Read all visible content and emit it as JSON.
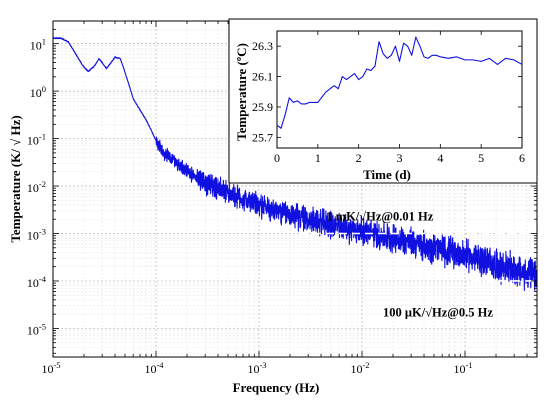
{
  "chart_data": [
    {
      "type": "line",
      "xlabel": "Frequency (Hz)",
      "ylabel": "Temperature (K/ √ Hz)",
      "xscale": "log",
      "yscale": "log",
      "xlim": [
        1e-05,
        0.5
      ],
      "ylim": [
        2.5e-06,
        30
      ],
      "x_ticks": [
        {
          "value": 1e-05,
          "base": "10",
          "exp": "-5"
        },
        {
          "value": 0.0001,
          "base": "10",
          "exp": "-4"
        },
        {
          "value": 0.001,
          "base": "10",
          "exp": "-3"
        },
        {
          "value": 0.01,
          "base": "10",
          "exp": "-2"
        },
        {
          "value": 0.1,
          "base": "10",
          "exp": "-1"
        }
      ],
      "y_ticks": [
        {
          "value": 10,
          "base": "10",
          "exp": "1"
        },
        {
          "value": 1,
          "base": "10",
          "exp": "0"
        },
        {
          "value": 0.1,
          "base": "10",
          "exp": "-1"
        },
        {
          "value": 0.01,
          "base": "10",
          "exp": "-2"
        },
        {
          "value": 0.001,
          "base": "10",
          "exp": "-3"
        },
        {
          "value": 0.0001,
          "base": "10",
          "exp": "-4"
        },
        {
          "value": 1e-05,
          "base": "10",
          "exp": "-5"
        }
      ],
      "grid": true,
      "color": "#1010e0",
      "series": [
        {
          "x": [
            1e-05,
            1.2e-05,
            1.4e-05,
            1.6e-05,
            1.8e-05,
            2e-05,
            2.2e-05,
            2.5e-05,
            2.8e-05,
            3e-05,
            3.3e-05,
            3.6e-05,
            4e-05,
            4.5e-05,
            5e-05,
            5.5e-05,
            6e-05,
            7e-05,
            8e-05,
            9e-05,
            0.0001,
            0.00012,
            0.00015,
            0.0002,
            0.0003,
            0.0005,
            0.001,
            0.002,
            0.005,
            0.01,
            0.02,
            0.05,
            0.1,
            0.2,
            0.5
          ],
          "y": [
            13,
            13,
            11,
            7,
            4.5,
            3.2,
            2.6,
            3.3,
            4.8,
            4,
            3,
            3.8,
            5.2,
            4.8,
            2.5,
            1.3,
            0.7,
            0.4,
            0.25,
            0.15,
            0.09,
            0.05,
            0.035,
            0.02,
            0.012,
            0.007,
            0.004,
            0.0025,
            0.0015,
            0.0011,
            0.0008,
            0.0005,
            0.00035,
            0.00022,
            0.00012
          ]
        }
      ],
      "reference_lines": [
        {
          "y": 0.001,
          "x_from": 0.0025,
          "x_to": 0.5,
          "style": "dashed",
          "color": "#ffffff"
        },
        {
          "y": 0.0001,
          "x_from": 0.12,
          "x_to": 0.5,
          "style": "dashed",
          "color": "#ffffff"
        }
      ],
      "annotations": [
        {
          "text": "1 mK/√Hz@0.01 Hz",
          "x": 0.0045,
          "y": 0.0019
        },
        {
          "text": "100 μK/√Hz@0.5 Hz",
          "x": 0.016,
          "y": 1.8e-05
        }
      ]
    },
    {
      "type": "line",
      "xlabel": "Time (d)",
      "ylabel": "Temperature (ºC)",
      "xlim": [
        0,
        6
      ],
      "ylim": [
        25.63,
        26.4
      ],
      "x_ticks": [
        "0",
        "1",
        "2",
        "3",
        "4",
        "5",
        "6"
      ],
      "y_ticks": [
        "25.7",
        "25.9",
        "26.1",
        "26.3"
      ],
      "color": "#1010e0",
      "series": [
        {
          "x": [
            0,
            0.1,
            0.2,
            0.3,
            0.4,
            0.5,
            0.6,
            0.7,
            0.8,
            0.9,
            1.0,
            1.2,
            1.4,
            1.5,
            1.6,
            1.7,
            1.8,
            1.9,
            2.0,
            2.1,
            2.2,
            2.3,
            2.4,
            2.5,
            2.6,
            2.7,
            2.8,
            2.9,
            3.0,
            3.1,
            3.2,
            3.3,
            3.4,
            3.5,
            3.6,
            3.7,
            3.8,
            3.9,
            4.0,
            4.2,
            4.4,
            4.6,
            4.8,
            5.0,
            5.2,
            5.4,
            5.6,
            5.8,
            6.0
          ],
          "y": [
            25.78,
            25.76,
            25.85,
            25.96,
            25.93,
            25.94,
            25.92,
            25.92,
            25.93,
            25.93,
            25.93,
            26.0,
            26.04,
            26.02,
            26.1,
            26.08,
            26.1,
            26.12,
            26.08,
            26.1,
            26.15,
            26.14,
            26.17,
            26.33,
            26.25,
            26.22,
            26.24,
            26.3,
            26.2,
            26.32,
            26.3,
            26.24,
            26.36,
            26.3,
            26.23,
            26.22,
            26.24,
            26.24,
            26.23,
            26.22,
            26.23,
            26.21,
            26.21,
            26.2,
            26.22,
            26.18,
            26.22,
            26.21,
            26.18
          ]
        }
      ]
    }
  ]
}
